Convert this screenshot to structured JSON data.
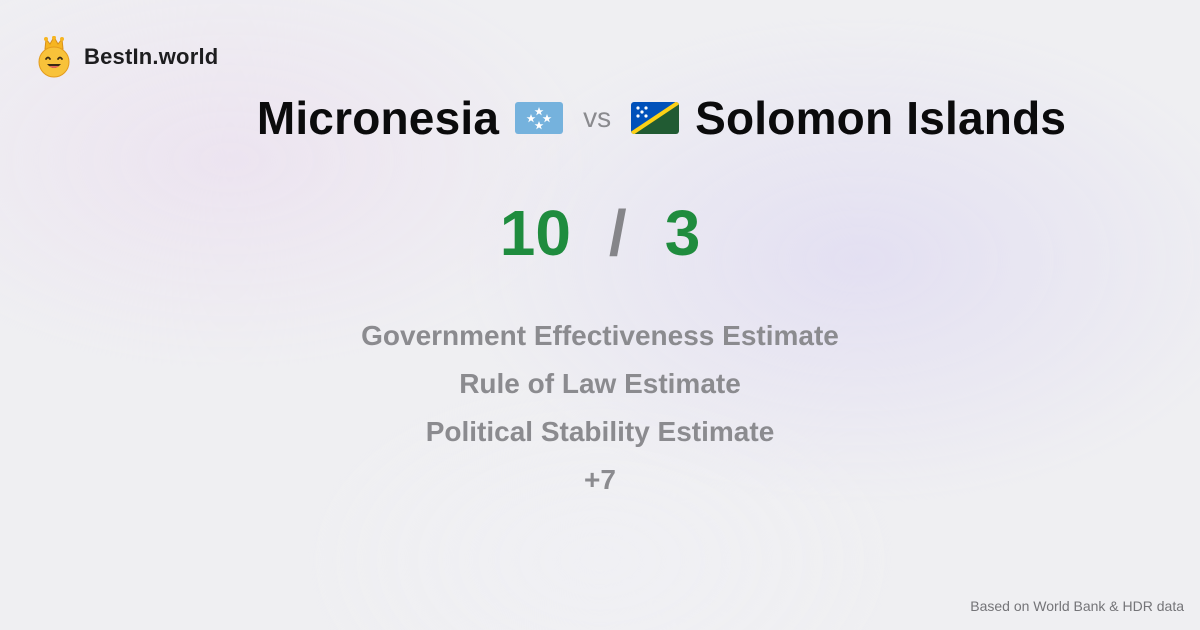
{
  "brand": {
    "name": "BestIn.world",
    "icon": "smiling-crown-face-icon"
  },
  "comparison": {
    "left": {
      "name": "Micronesia",
      "flag_icon": "micronesia-flag-icon",
      "score": "10"
    },
    "vs_label": "vs",
    "right": {
      "name": "Solomon Islands",
      "flag_icon": "solomon-islands-flag-icon",
      "score": "3"
    },
    "score_separator": "/"
  },
  "metrics": [
    "Government Effectiveness Estimate",
    "Rule of Law Estimate",
    "Political Stability Estimate",
    "+7"
  ],
  "footer": {
    "source_note": "Based on World Bank & HDR data"
  },
  "colors": {
    "score_green": "#1f8c3e",
    "muted_gray": "#8b8b8f",
    "text_dark": "#0b0b0c"
  }
}
